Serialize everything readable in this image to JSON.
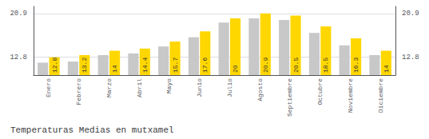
{
  "chart_data": {
    "type": "bar",
    "title": "Temperaturas Medias en mutxamel",
    "categories": [
      "Enero",
      "Febrero",
      "Marzo",
      "Abril",
      "Mayo",
      "Junio",
      "Julio",
      "Agosto",
      "Septiembre",
      "Octubre",
      "Noviembre",
      "Diciembre"
    ],
    "series": [
      {
        "color": "#C8C8C8",
        "values": [
          11.8,
          12.0,
          13.2,
          13.5,
          14.8,
          16.5,
          19.2,
          20.0,
          19.7,
          17.3,
          15.0,
          13.2
        ]
      },
      {
        "color": "#FFD700",
        "data_labels": true,
        "values": [
          12.8,
          13.2,
          14.0,
          14.4,
          15.7,
          17.6,
          20.0,
          20.9,
          20.5,
          18.5,
          16.3,
          14.0
        ]
      }
    ],
    "ylim": [
      9.5,
      22.2
    ],
    "yticks": [
      12.8,
      20.9
    ],
    "y2lim": [
      9.5,
      22.2
    ],
    "y2ticks": [
      12.8,
      20.9
    ],
    "grid": true
  }
}
